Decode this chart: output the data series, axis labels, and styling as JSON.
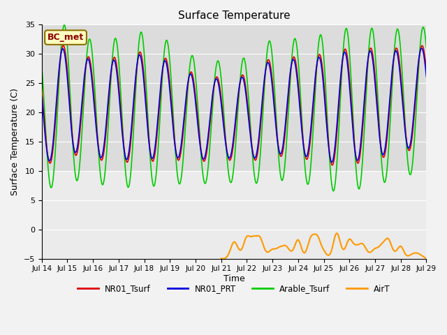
{
  "title": "Surface Temperature",
  "ylabel": "Surface Temperature (C)",
  "xlabel": "Time",
  "annotation": "BC_met",
  "ylim": [
    -5,
    35
  ],
  "background_color": "#dcdcdc",
  "plot_bg_color": "#dcdcdc",
  "upper_bg_color": "#dcdcdc",
  "lower_bg_color": "#e8e8e8",
  "series": {
    "NR01_Tsurf": {
      "color": "#dd0000",
      "lw": 1.2
    },
    "NR01_PRT": {
      "color": "#0000dd",
      "lw": 1.2
    },
    "Arable_Tsurf": {
      "color": "#00cc00",
      "lw": 1.2
    },
    "AirT": {
      "color": "#ff9900",
      "lw": 1.5
    }
  },
  "xtick_labels": [
    "Jul 14",
    "Jul 15",
    "Jul 16",
    "Jul 17",
    "Jul 18",
    "Jul 19",
    "Jul 20",
    "Jul 21",
    "Jul 22",
    "Jul 23",
    "Jul 24",
    "Jul 25",
    "Jul 26",
    "Jul 27",
    "Jul 28",
    "Jul 29"
  ],
  "ytick_vals": [
    -5,
    0,
    5,
    10,
    15,
    20,
    25,
    30,
    35
  ],
  "legend_items": [
    "NR01_Tsurf",
    "NR01_PRT",
    "Arable_Tsurf",
    "AirT"
  ],
  "legend_colors": [
    "#dd0000",
    "#0000dd",
    "#00cc00",
    "#ff9900"
  ],
  "figsize": [
    6.4,
    4.8
  ],
  "dpi": 100
}
